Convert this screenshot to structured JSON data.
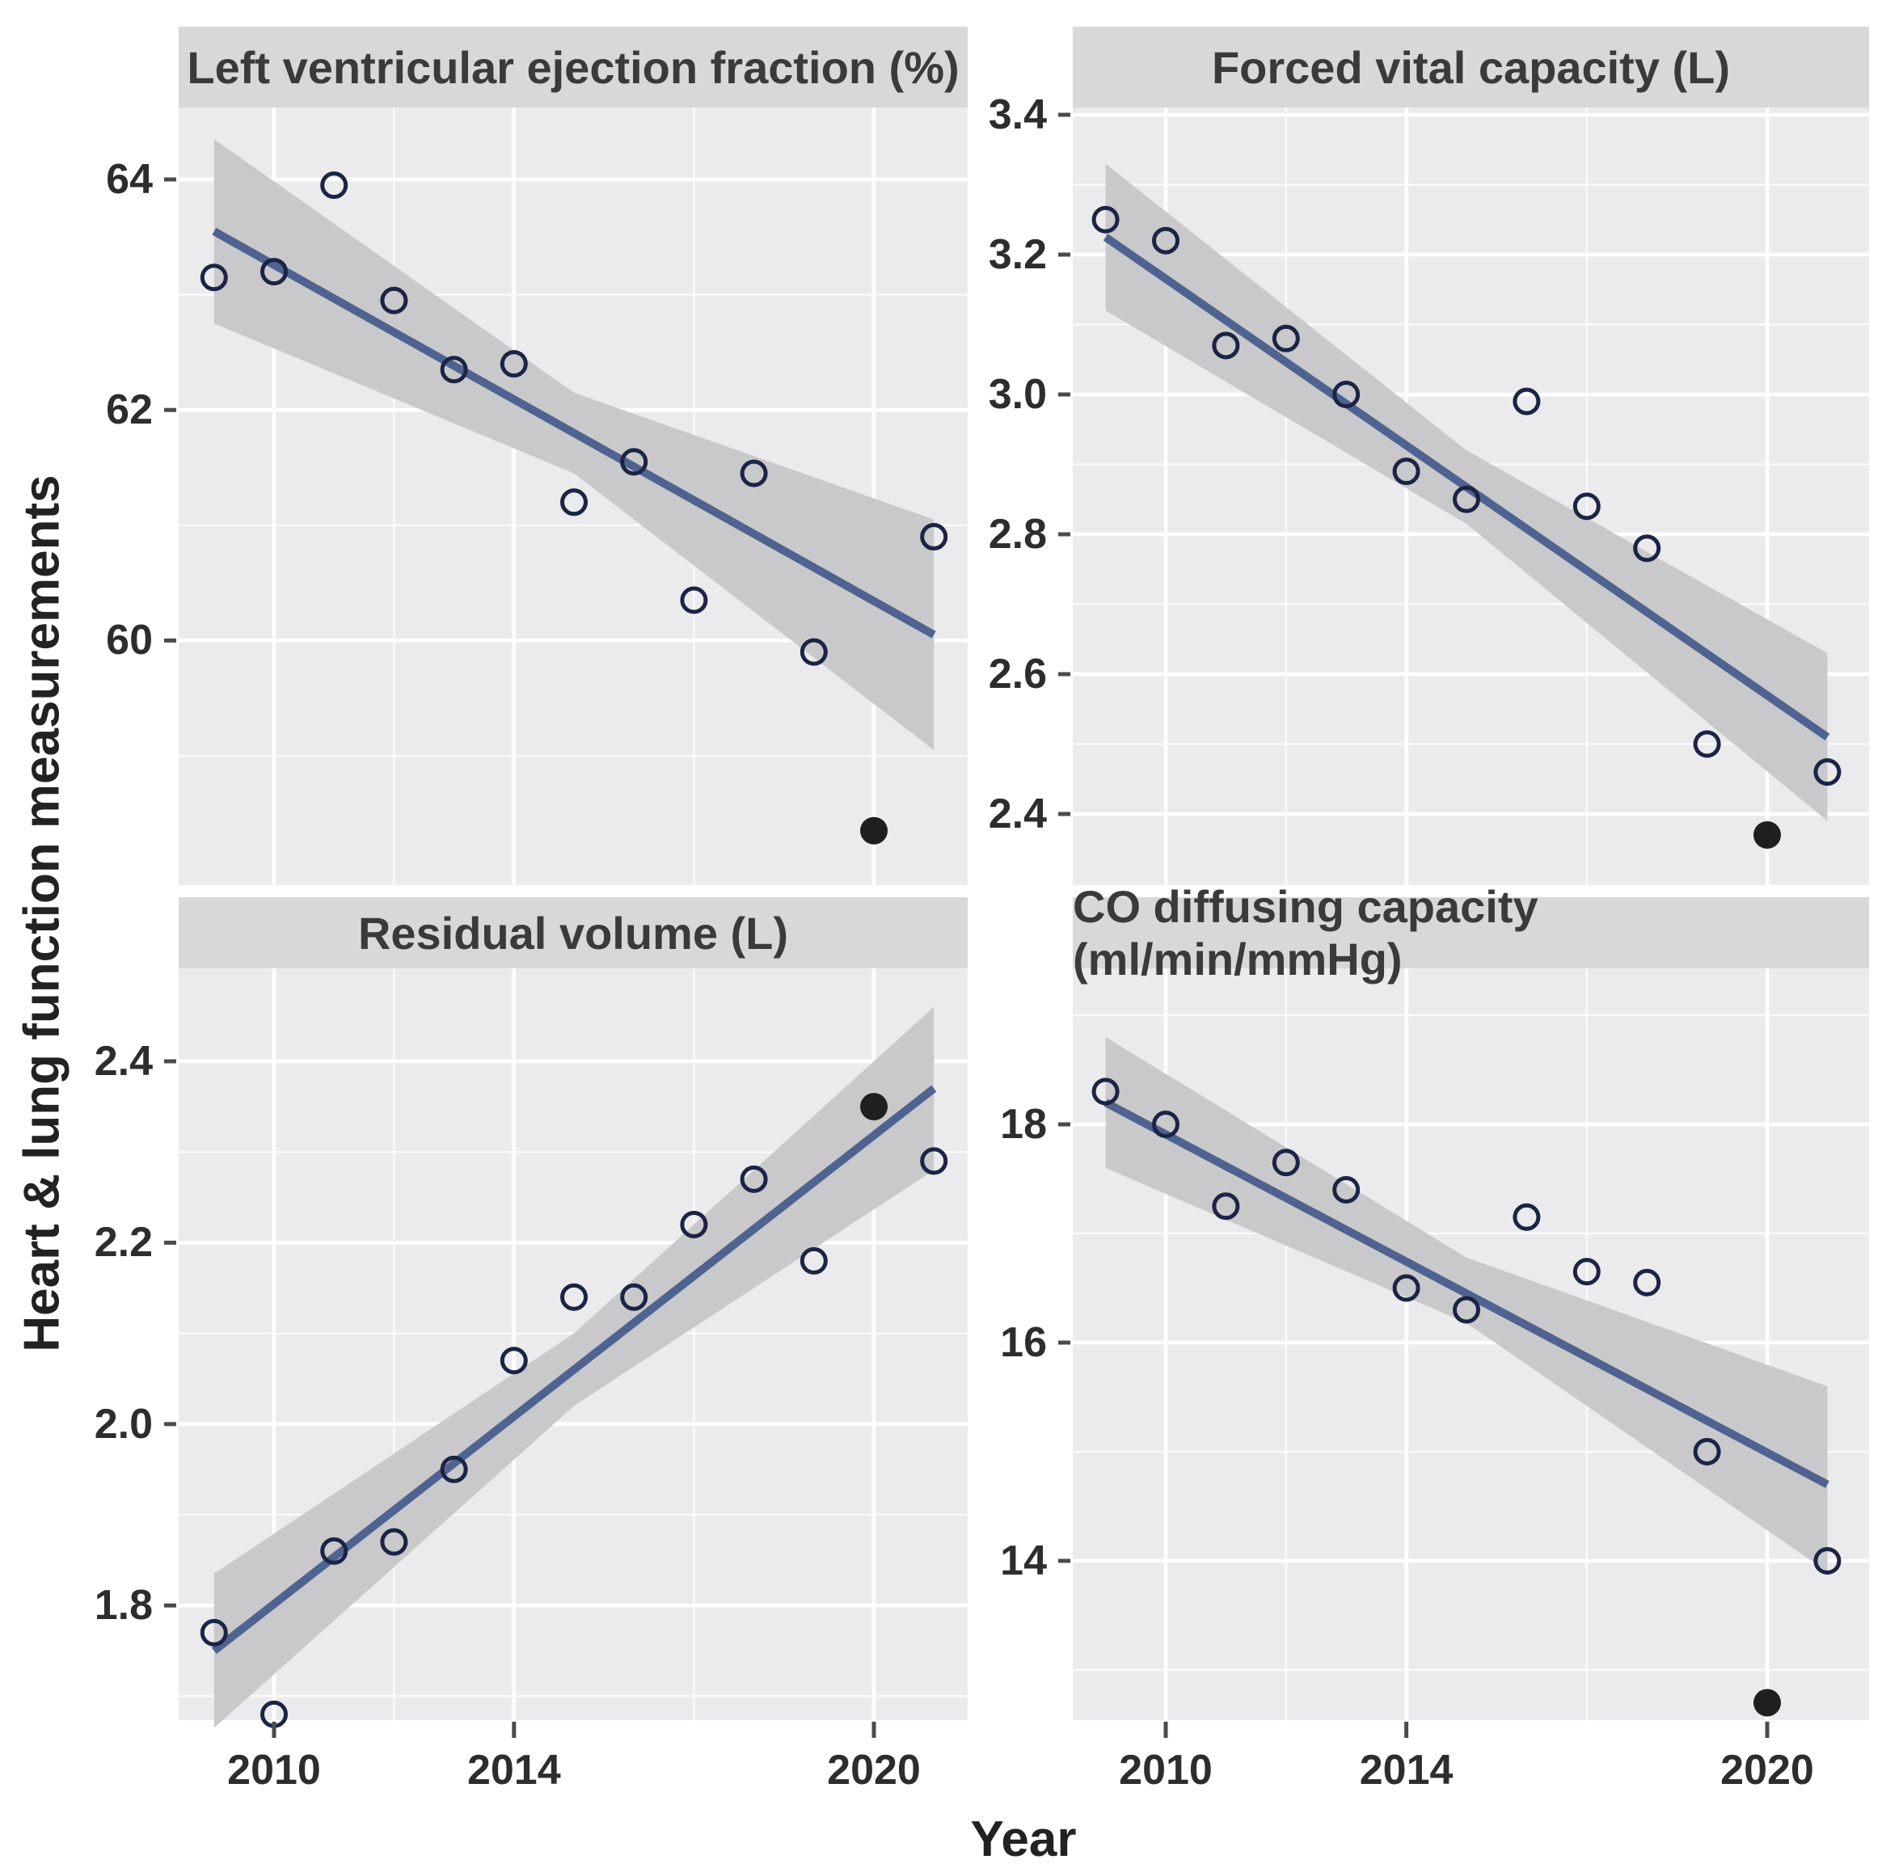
{
  "figure": {
    "xlabel": "Year",
    "ylabel": "Heart & lung function measurements",
    "x_tick_labels": [
      "2010",
      "2014",
      "2020"
    ],
    "x_tick_years": [
      2010,
      2014,
      2020
    ],
    "colors": {
      "panel_bg": "#ebebed",
      "strip_bg": "#d8d8da",
      "grid": "#ffffff",
      "band": "#c9c9cc",
      "trend": "#4f6390",
      "point_stroke": "#1b2444",
      "highlight_fill": "#1f1f21",
      "tick_mark": "#4b4b4b"
    }
  },
  "chart_data": [
    {
      "type": "scatter",
      "title": "Left ventricular ejection fraction (%)",
      "xlabel": "Year",
      "x": [
        2009,
        2010,
        2011,
        2012,
        2013,
        2014,
        2015,
        2016,
        2017,
        2018,
        2019,
        2021
      ],
      "values": [
        63.15,
        63.2,
        63.95,
        62.95,
        62.35,
        62.4,
        61.2,
        61.55,
        60.35,
        61.45,
        59.9,
        60.9
      ],
      "highlight": {
        "x": 2020,
        "value": 58.35,
        "style": "filled-black"
      },
      "trend": {
        "x": [
          2009,
          2021
        ],
        "y": [
          63.55,
          60.05
        ]
      },
      "band": {
        "x": [
          2009,
          2015,
          2021
        ],
        "upper": [
          64.35,
          62.15,
          61.05
        ],
        "lower": [
          62.75,
          61.45,
          59.05
        ]
      },
      "y_tick_labels": [
        "64",
        "62",
        "60"
      ],
      "y_tick_values": [
        64,
        62,
        60
      ],
      "y_minor": [
        63,
        61,
        59
      ],
      "x_major": [
        2010,
        2014,
        2020
      ],
      "x_minor": [
        2012,
        2017
      ],
      "ylim": [
        57.9,
        64.6
      ],
      "xlim": [
        2008.4,
        2021.6
      ],
      "grid": "on",
      "legend": "none"
    },
    {
      "type": "scatter",
      "title": "Forced vital capacity (L)",
      "xlabel": "Year",
      "x": [
        2009,
        2010,
        2011,
        2012,
        2013,
        2014,
        2015,
        2016,
        2017,
        2018,
        2019,
        2021
      ],
      "values": [
        3.25,
        3.22,
        3.07,
        3.08,
        3.0,
        2.89,
        2.85,
        2.99,
        2.84,
        2.78,
        2.5,
        2.46
      ],
      "highlight": {
        "x": 2020,
        "value": 2.37,
        "style": "filled-black"
      },
      "trend": {
        "x": [
          2009,
          2021
        ],
        "y": [
          3.225,
          2.51
        ]
      },
      "band": {
        "x": [
          2009,
          2015,
          2021
        ],
        "upper": [
          3.33,
          2.92,
          2.63
        ],
        "lower": [
          3.12,
          2.815,
          2.39
        ]
      },
      "y_tick_labels": [
        "3.4",
        "3.2",
        "3.0",
        "2.8",
        "2.6",
        "2.4"
      ],
      "y_tick_values": [
        3.4,
        3.2,
        3.0,
        2.8,
        2.6,
        2.4
      ],
      "y_minor": [
        3.3,
        3.1,
        2.9,
        2.7,
        2.5,
        2.3
      ],
      "x_major": [
        2010,
        2014,
        2020
      ],
      "x_minor": [
        2012,
        2017
      ],
      "ylim": [
        2.3,
        3.41
      ],
      "xlim": [
        2008.4,
        2021.6
      ],
      "grid": "on",
      "legend": "none"
    },
    {
      "type": "scatter",
      "title": "Residual volume (L)",
      "xlabel": "Year",
      "x": [
        2009,
        2010,
        2011,
        2012,
        2013,
        2014,
        2015,
        2016,
        2017,
        2018,
        2019,
        2021
      ],
      "values": [
        1.77,
        1.68,
        1.86,
        1.87,
        1.95,
        2.07,
        2.14,
        2.14,
        2.22,
        2.27,
        2.18,
        2.29
      ],
      "highlight": {
        "x": 2020,
        "value": 2.35,
        "style": "filled-black"
      },
      "trend": {
        "x": [
          2009,
          2021
        ],
        "y": [
          1.75,
          2.37
        ]
      },
      "band": {
        "x": [
          2009,
          2015,
          2021
        ],
        "upper": [
          1.835,
          2.1,
          2.46
        ],
        "lower": [
          1.665,
          2.02,
          2.28
        ]
      },
      "y_tick_labels": [
        "2.4",
        "2.2",
        "2.0",
        "1.8"
      ],
      "y_tick_values": [
        2.4,
        2.2,
        2.0,
        1.8
      ],
      "y_minor": [
        2.3,
        2.1,
        1.9,
        1.7
      ],
      "x_major": [
        2010,
        2014,
        2020
      ],
      "x_minor": [
        2012,
        2017
      ],
      "ylim": [
        1.67,
        2.5
      ],
      "xlim": [
        2008.4,
        2021.6
      ],
      "grid": "on",
      "legend": "none"
    },
    {
      "type": "scatter",
      "title": "CO diffusing capacity (ml/min/mmHg)",
      "xlabel": "Year",
      "x": [
        2009,
        2010,
        2011,
        2012,
        2013,
        2014,
        2015,
        2016,
        2017,
        2018,
        2019,
        2021
      ],
      "values": [
        18.3,
        18.0,
        17.25,
        17.65,
        17.4,
        16.5,
        16.3,
        17.15,
        16.65,
        16.55,
        15.0,
        14.0
      ],
      "highlight": {
        "x": 2020,
        "value": 12.7,
        "style": "filled-black"
      },
      "trend": {
        "x": [
          2009,
          2021
        ],
        "y": [
          18.2,
          14.7
        ]
      },
      "band": {
        "x": [
          2009,
          2015,
          2021
        ],
        "upper": [
          18.8,
          16.78,
          15.6
        ],
        "lower": [
          17.6,
          16.18,
          13.9
        ]
      },
      "y_tick_labels": [
        "18",
        "16",
        "14"
      ],
      "y_tick_values": [
        18,
        16,
        14
      ],
      "y_minor": [
        19,
        17,
        15,
        13
      ],
      "x_major": [
        2010,
        2014,
        2020
      ],
      "x_minor": [
        2012,
        2017
      ],
      "ylim": [
        12.5,
        19.4
      ],
      "xlim": [
        2008.4,
        2021.6
      ],
      "grid": "on",
      "legend": "none"
    }
  ]
}
